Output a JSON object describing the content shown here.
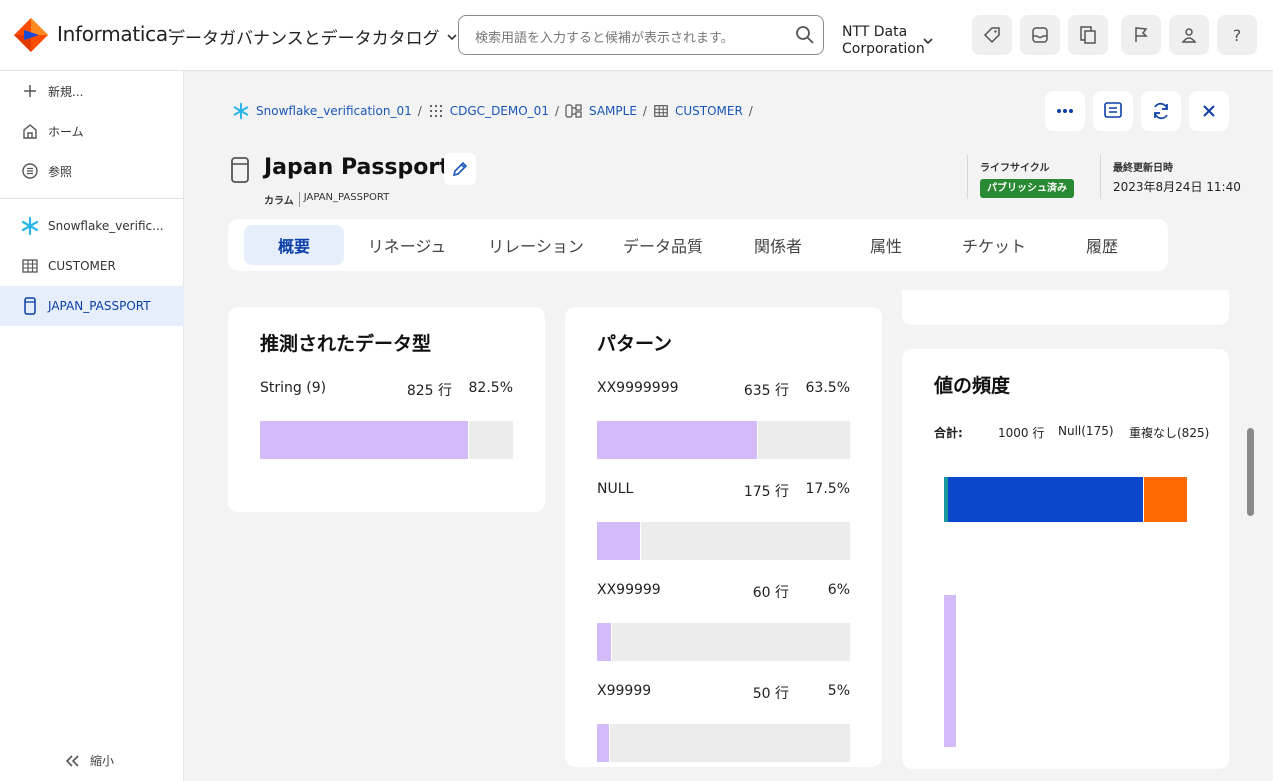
{
  "topbar": {
    "brand": "Informatica",
    "app_title": "データガバナンスとデータカタログ",
    "search_placeholder": "検索用語を入力すると候補が表示されます。",
    "org_line1": "NTT Data",
    "org_line2": "Corporation",
    "help": "?"
  },
  "sidebar": {
    "new": "新規...",
    "home": "ホーム",
    "browse": "参照",
    "snowflake": "Snowflake_verific...",
    "customer": "CUSTOMER",
    "japan_passport": "JAPAN_PASSPORT",
    "collapse": "縮小"
  },
  "breadcrumb": {
    "items": [
      "Snowflake_verification_01",
      "CDGC_DEMO_01",
      "SAMPLE",
      "CUSTOMER"
    ],
    "sep": "/"
  },
  "asset": {
    "title": "Japan Passport",
    "type_label": "カラム",
    "type_value": "JAPAN_PASSPORT",
    "lifecycle_label": "ライフサイクル",
    "lifecycle_value": "パブリッシュ済み",
    "updated_label": "最終更新日時",
    "updated_value": "2023年8月24日 11:40"
  },
  "tabs": [
    "概要",
    "リネージュ",
    "リレーション",
    "データ品質",
    "関係者",
    "属性",
    "チケット",
    "履歴"
  ],
  "inferred_type": {
    "title": "推測されたデータ型",
    "rows": [
      {
        "label": "String (9)",
        "count": "825 行",
        "pct": "82.5%",
        "fraction": 0.825
      }
    ]
  },
  "patterns": {
    "title": "パターン",
    "rows": [
      {
        "label": "XX9999999",
        "count": "635 行",
        "pct": "63.5%",
        "fraction": 0.635
      },
      {
        "label": "NULL",
        "count": "175 行",
        "pct": "17.5%",
        "fraction": 0.175
      },
      {
        "label": "XX99999",
        "count": "60 行",
        "pct": "6%",
        "fraction": 0.06
      },
      {
        "label": "X99999",
        "count": "50 行",
        "pct": "5%",
        "fraction": 0.05
      }
    ]
  },
  "value_frequency": {
    "title": "値の頻度",
    "total_label": "合計:",
    "total": "1000 行",
    "null": "Null(175)",
    "distinct": "重複なし(825)",
    "colors": {
      "null": "#1a9aa0",
      "main": "#0b47cc",
      "other": "#ff6a00",
      "bar": "#d3bbfa"
    }
  },
  "colors": {
    "accent": "#0b3fa8",
    "link": "#1a56b8",
    "bar": "#d3bbfa",
    "badge": "#2a8a34"
  }
}
